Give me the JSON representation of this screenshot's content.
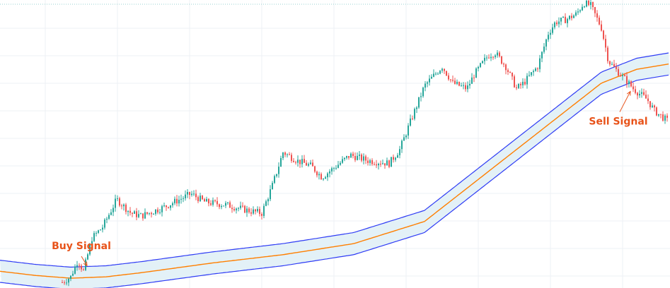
{
  "chart_data": {
    "type": "candlestick",
    "title": "",
    "xlabel": "",
    "ylabel": "",
    "grid": true,
    "colors": {
      "up": "#26a69a",
      "down": "#ef5350",
      "center_line": "#ff7f00",
      "band_lines": "#2f3cf5",
      "band_fill": "#e3f1f7",
      "grid": "#eef1f4",
      "annotation": "#e8531a",
      "top_dotted": "#9ad2d0"
    },
    "x": [
      0,
      940
    ],
    "ylim": [
      0,
      100
    ],
    "price_anchors": [
      [
        88,
        0
      ],
      [
        100,
        2
      ],
      [
        110,
        8
      ],
      [
        118,
        4
      ],
      [
        130,
        16
      ],
      [
        145,
        20
      ],
      [
        165,
        30
      ],
      [
        185,
        25
      ],
      [
        200,
        24
      ],
      [
        230,
        27
      ],
      [
        270,
        32
      ],
      [
        290,
        29
      ],
      [
        320,
        28
      ],
      [
        350,
        26
      ],
      [
        370,
        25
      ],
      [
        385,
        35
      ],
      [
        400,
        47
      ],
      [
        420,
        44
      ],
      [
        440,
        42
      ],
      [
        455,
        38
      ],
      [
        480,
        43
      ],
      [
        495,
        46
      ],
      [
        520,
        44
      ],
      [
        550,
        43
      ],
      [
        565,
        48
      ],
      [
        580,
        58
      ],
      [
        600,
        71
      ],
      [
        625,
        78
      ],
      [
        640,
        72
      ],
      [
        660,
        70
      ],
      [
        670,
        75
      ],
      [
        690,
        82
      ],
      [
        700,
        83
      ],
      [
        715,
        78
      ],
      [
        730,
        70
      ],
      [
        740,
        72
      ],
      [
        760,
        78
      ],
      [
        775,
        90
      ],
      [
        785,
        94
      ],
      [
        800,
        95
      ],
      [
        815,
        97
      ],
      [
        825,
        101
      ],
      [
        835,
        100
      ],
      [
        850,
        92
      ],
      [
        860,
        80
      ],
      [
        870,
        77
      ],
      [
        885,
        73
      ],
      [
        895,
        70
      ],
      [
        905,
        68
      ],
      [
        915,
        66
      ],
      [
        925,
        62
      ],
      [
        935,
        60
      ],
      [
        945,
        58
      ]
    ],
    "center_line": [
      [
        0,
        4
      ],
      [
        50,
        2.5
      ],
      [
        100,
        1.5
      ],
      [
        150,
        2
      ],
      [
        200,
        3.5
      ],
      [
        300,
        7
      ],
      [
        400,
        10
      ],
      [
        500,
        14
      ],
      [
        600,
        22
      ],
      [
        700,
        42
      ],
      [
        800,
        62
      ],
      [
        850,
        72
      ],
      [
        900,
        77
      ],
      [
        947,
        79
      ]
    ],
    "band_upper": [
      [
        0,
        8
      ],
      [
        50,
        6.5
      ],
      [
        100,
        5.5
      ],
      [
        150,
        6
      ],
      [
        200,
        7.5
      ],
      [
        300,
        11
      ],
      [
        400,
        14
      ],
      [
        500,
        18
      ],
      [
        600,
        26
      ],
      [
        700,
        46
      ],
      [
        800,
        66
      ],
      [
        850,
        76
      ],
      [
        900,
        81
      ],
      [
        947,
        83
      ]
    ],
    "band_lower": [
      [
        0,
        0
      ],
      [
        50,
        -1.5
      ],
      [
        100,
        -2.5
      ],
      [
        150,
        -2
      ],
      [
        200,
        -0.5
      ],
      [
        300,
        3
      ],
      [
        400,
        6
      ],
      [
        500,
        10
      ],
      [
        600,
        18
      ],
      [
        700,
        38
      ],
      [
        800,
        58
      ],
      [
        850,
        68
      ],
      [
        900,
        73
      ],
      [
        947,
        75
      ]
    ],
    "annotations": [
      {
        "text": "Buy Signal",
        "x": 115,
        "y": 12,
        "target_x": 123,
        "target_y": 6
      },
      {
        "text": "Sell Signal",
        "x": 874,
        "y": 57,
        "target_x": 891,
        "target_y": 69
      }
    ]
  }
}
